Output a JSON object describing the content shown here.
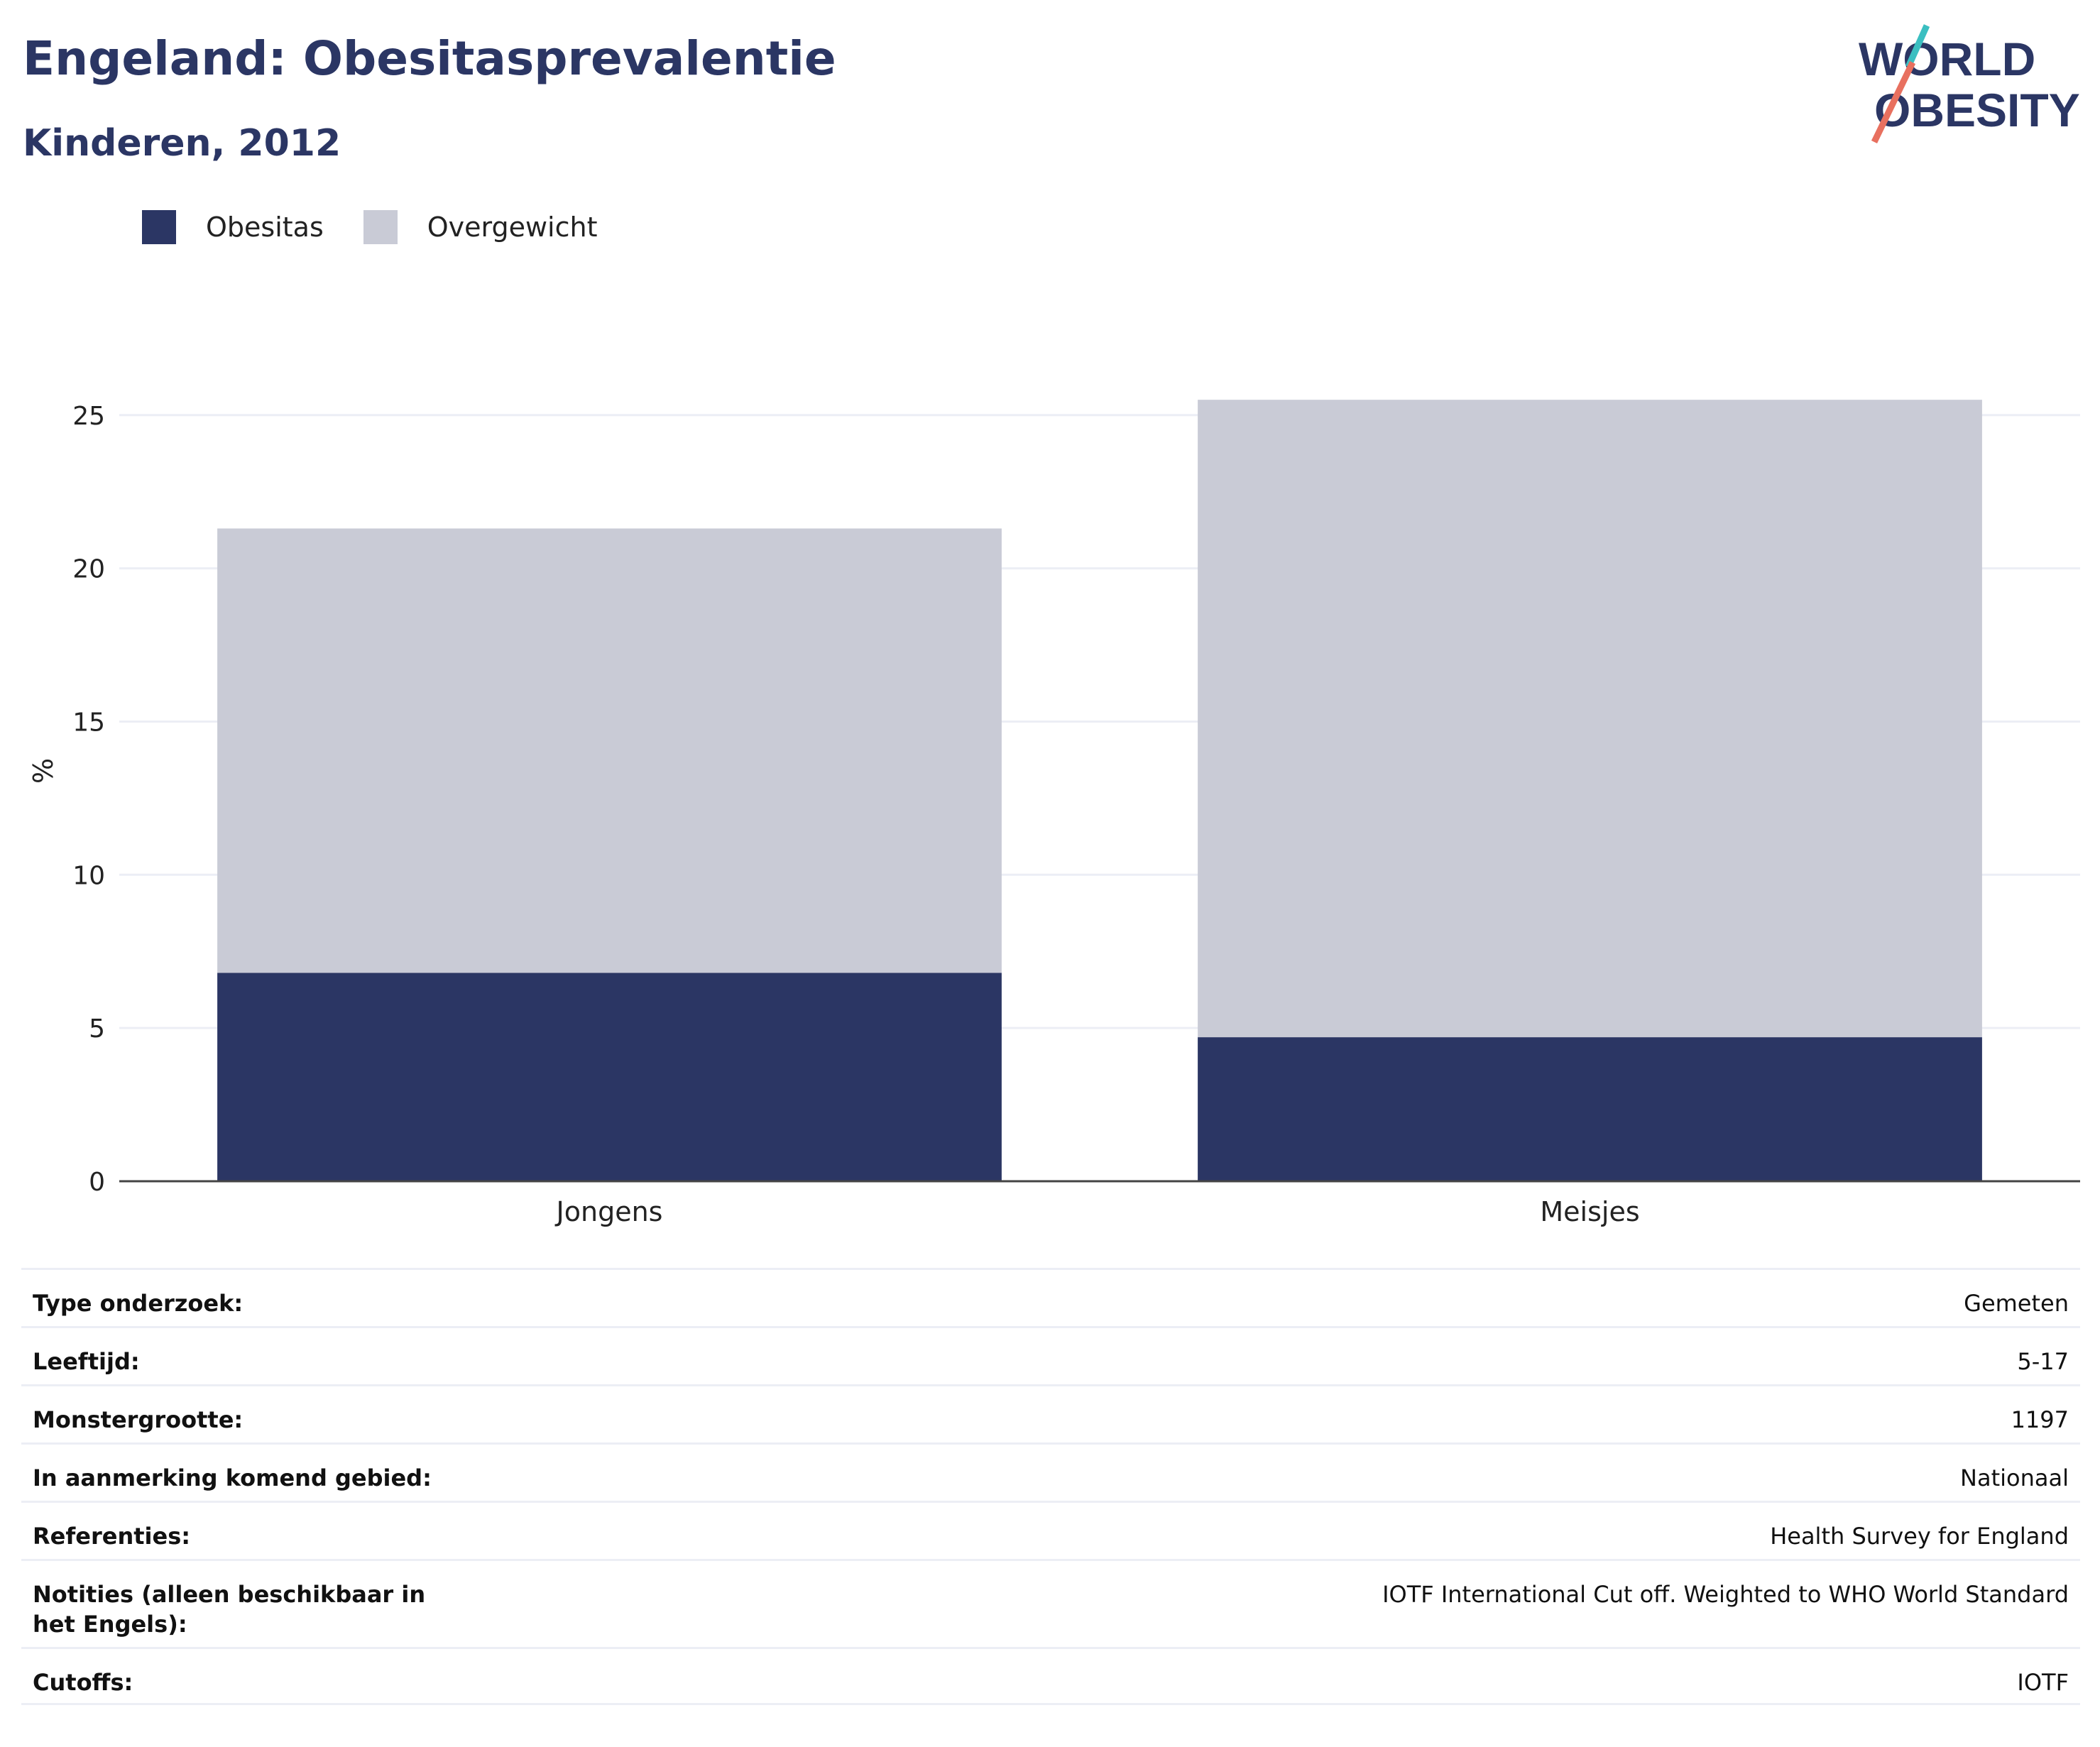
{
  "header": {
    "title": "Engeland: Obesitasprevalentie",
    "subtitle": "Kinderen, 2012"
  },
  "logo": {
    "line1": "WORLD",
    "line2": "OBESITY",
    "accent_teal": "#3bbfc1",
    "accent_coral": "#e8705f",
    "text_color": "#2b3664"
  },
  "legend": [
    {
      "label": "Obesitas",
      "color": "#2b3664"
    },
    {
      "label": "Overgewicht",
      "color": "#c9cbd6"
    }
  ],
  "chart_data": {
    "type": "bar",
    "stacked": true,
    "categories": [
      "Jongens",
      "Meisjes"
    ],
    "series": [
      {
        "name": "Obesitas",
        "color": "#2b3664",
        "values": [
          6.8,
          4.7
        ]
      },
      {
        "name": "Overgewicht",
        "color": "#c9cbd6",
        "values": [
          14.5,
          20.8
        ]
      }
    ],
    "ylabel": "%",
    "ylim": [
      0,
      26.5
    ],
    "yticks": [
      0,
      5,
      10,
      15,
      20,
      25
    ],
    "grid": true,
    "legend_position": "top-left"
  },
  "meta": [
    {
      "label": "Type onderzoek:",
      "value": "Gemeten"
    },
    {
      "label": "Leeftijd:",
      "value": "5-17"
    },
    {
      "label": "Monstergrootte:",
      "value": "1197"
    },
    {
      "label": "In aanmerking komend gebied:",
      "value": "Nationaal"
    },
    {
      "label": "Referenties:",
      "value": "Health Survey for England"
    },
    {
      "label": "Notities (alleen beschikbaar in het Engels):",
      "value": "IOTF International Cut off. Weighted to WHO World Standard"
    },
    {
      "label": "Cutoffs:",
      "value": "IOTF"
    }
  ]
}
